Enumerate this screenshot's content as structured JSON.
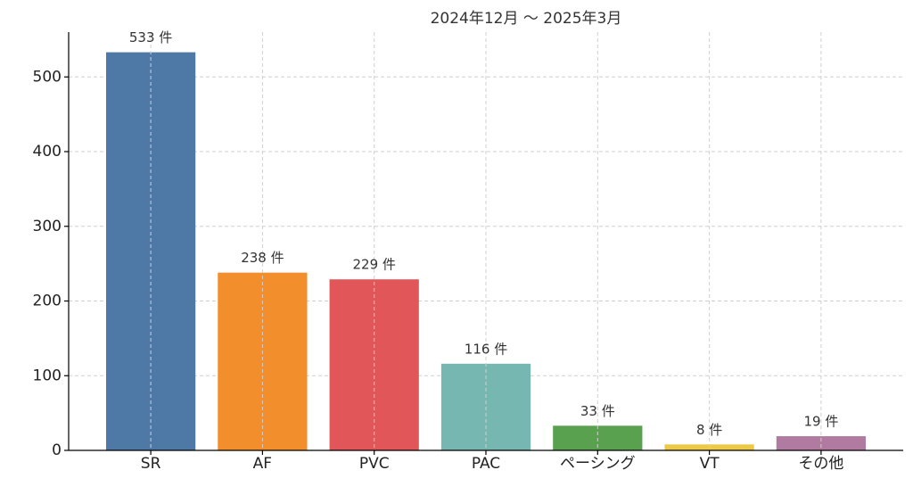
{
  "chart_data": {
    "type": "bar",
    "title": "2024年12月 ～ 2025年3月",
    "categories": [
      "SR",
      "AF",
      "PVC",
      "PAC",
      "ペーシング",
      "VT",
      "その他"
    ],
    "values": [
      533,
      238,
      229,
      116,
      33,
      8,
      19
    ],
    "value_labels": [
      "533 件",
      "238 件",
      "229 件",
      "116 件",
      "33 件",
      "8 件",
      "19 件"
    ],
    "colors": [
      "#4e79a7",
      "#f28e2b",
      "#e15759",
      "#76b7b2",
      "#59a14f",
      "#edc948",
      "#b07aa1"
    ],
    "ylim": [
      0,
      560
    ],
    "yticks": [
      0,
      100,
      200,
      300,
      400,
      500
    ],
    "grid": true
  }
}
